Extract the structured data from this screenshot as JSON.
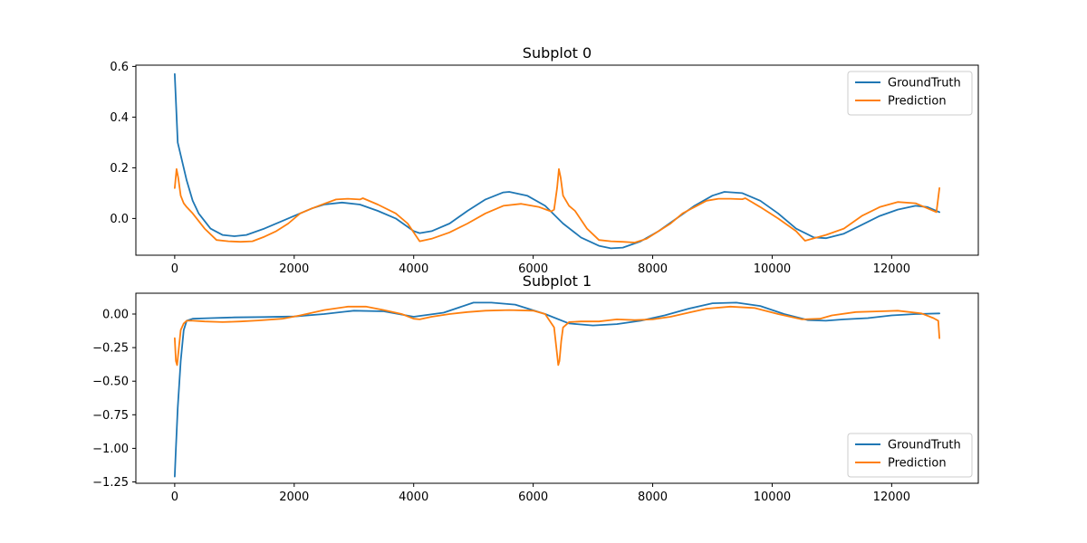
{
  "chart_data": [
    {
      "type": "line",
      "title": "Subplot 0",
      "xlabel": "",
      "ylabel": "",
      "xlim": [
        -650,
        13450
      ],
      "ylim": [
        -0.145,
        0.605
      ],
      "xticks": [
        0,
        2000,
        4000,
        6000,
        8000,
        10000,
        12000
      ],
      "xtick_labels": [
        "0",
        "2000",
        "4000",
        "6000",
        "8000",
        "10000",
        "12000"
      ],
      "yticks": [
        0.0,
        0.2,
        0.4,
        0.6
      ],
      "ytick_labels": [
        "0.0",
        "0.2",
        "0.4",
        "0.6"
      ],
      "grid": false,
      "legend_location": "upper right",
      "series": [
        {
          "name": "GroundTruth",
          "color": "#1f77b4",
          "x": [
            0,
            50,
            100,
            200,
            300,
            400,
            600,
            800,
            1000,
            1200,
            1500,
            1800,
            2000,
            2300,
            2500,
            2800,
            3100,
            3400,
            3700,
            4000,
            4100,
            4300,
            4600,
            4900,
            5200,
            5500,
            5600,
            5900,
            6200,
            6500,
            6800,
            7100,
            7300,
            7500,
            7800,
            8100,
            8400,
            8700,
            9000,
            9200,
            9500,
            9800,
            10100,
            10400,
            10700,
            10900,
            11200,
            11500,
            11800,
            12100,
            12400,
            12600,
            12800
          ],
          "y": [
            0.57,
            0.3,
            0.25,
            0.15,
            0.07,
            0.02,
            -0.04,
            -0.065,
            -0.07,
            -0.065,
            -0.04,
            -0.01,
            0.01,
            0.04,
            0.055,
            0.063,
            0.055,
            0.03,
            0.0,
            -0.05,
            -0.058,
            -0.05,
            -0.02,
            0.03,
            0.075,
            0.103,
            0.105,
            0.09,
            0.05,
            -0.02,
            -0.075,
            -0.108,
            -0.118,
            -0.115,
            -0.09,
            -0.05,
            0.0,
            0.05,
            0.09,
            0.105,
            0.1,
            0.07,
            0.02,
            -0.04,
            -0.075,
            -0.078,
            -0.06,
            -0.025,
            0.01,
            0.035,
            0.05,
            0.045,
            0.025
          ]
        },
        {
          "name": "Prediction",
          "color": "#ff7f0e",
          "x": [
            0,
            30,
            60,
            100,
            150,
            200,
            300,
            500,
            700,
            900,
            1100,
            1300,
            1500,
            1700,
            1900,
            2100,
            2300,
            2500,
            2700,
            2900,
            3100,
            3150,
            3400,
            3700,
            3900,
            4100,
            4300,
            4600,
            4900,
            5200,
            5500,
            5800,
            6100,
            6300,
            6350,
            6400,
            6430,
            6460,
            6500,
            6600,
            6700,
            6900,
            7100,
            7300,
            7500,
            7700,
            7900,
            8100,
            8300,
            8500,
            8700,
            8900,
            9100,
            9300,
            9500,
            9550,
            9800,
            10100,
            10400,
            10550,
            10700,
            10900,
            11200,
            11500,
            11800,
            12100,
            12400,
            12600,
            12750,
            12800
          ],
          "y": [
            0.12,
            0.195,
            0.16,
            0.09,
            0.06,
            0.045,
            0.02,
            -0.04,
            -0.085,
            -0.09,
            -0.092,
            -0.09,
            -0.072,
            -0.05,
            -0.02,
            0.02,
            0.04,
            0.058,
            0.075,
            0.078,
            0.075,
            0.08,
            0.055,
            0.02,
            -0.02,
            -0.09,
            -0.08,
            -0.055,
            -0.02,
            0.02,
            0.05,
            0.058,
            0.045,
            0.028,
            0.035,
            0.12,
            0.195,
            0.16,
            0.09,
            0.05,
            0.03,
            -0.04,
            -0.085,
            -0.09,
            -0.092,
            -0.095,
            -0.08,
            -0.05,
            -0.02,
            0.02,
            0.045,
            0.07,
            0.078,
            0.078,
            0.076,
            0.08,
            0.045,
            0.0,
            -0.05,
            -0.088,
            -0.078,
            -0.065,
            -0.04,
            0.01,
            0.045,
            0.065,
            0.06,
            0.04,
            0.025,
            0.12
          ]
        }
      ]
    },
    {
      "type": "line",
      "title": "Subplot 1",
      "xlabel": "",
      "ylabel": "",
      "xlim": [
        -650,
        13450
      ],
      "ylim": [
        -1.26,
        0.155
      ],
      "xticks": [
        0,
        2000,
        4000,
        6000,
        8000,
        10000,
        12000
      ],
      "xtick_labels": [
        "0",
        "2000",
        "4000",
        "6000",
        "8000",
        "10000",
        "12000"
      ],
      "yticks": [
        -1.25,
        -1.0,
        -0.75,
        -0.5,
        -0.25,
        0.0
      ],
      "ytick_labels": [
        "−1.25",
        "−1.00",
        "−0.75",
        "−0.50",
        "−0.25",
        "0.00"
      ],
      "grid": false,
      "legend_location": "lower right",
      "series": [
        {
          "name": "GroundTruth",
          "color": "#1f77b4",
          "x": [
            0,
            20,
            50,
            100,
            150,
            200,
            300,
            600,
            1000,
            1500,
            2000,
            2500,
            3000,
            3500,
            4000,
            4500,
            5000,
            5300,
            5700,
            6200,
            6600,
            7000,
            7400,
            7800,
            8200,
            8600,
            9000,
            9400,
            9800,
            10200,
            10600,
            10900,
            11200,
            11600,
            12000,
            12400,
            12800
          ],
          "y": [
            -1.21,
            -1.0,
            -0.7,
            -0.35,
            -0.12,
            -0.05,
            -0.035,
            -0.03,
            -0.025,
            -0.022,
            -0.018,
            0.0,
            0.025,
            0.02,
            -0.02,
            0.01,
            0.085,
            0.085,
            0.07,
            0.0,
            -0.07,
            -0.085,
            -0.075,
            -0.05,
            -0.01,
            0.04,
            0.08,
            0.085,
            0.06,
            0.0,
            -0.045,
            -0.05,
            -0.04,
            -0.03,
            -0.01,
            0.0,
            0.005
          ]
        },
        {
          "name": "Prediction",
          "color": "#ff7f0e",
          "x": [
            0,
            20,
            40,
            70,
            100,
            150,
            200,
            300,
            500,
            800,
            1100,
            1400,
            1800,
            2100,
            2500,
            2900,
            3200,
            3500,
            3800,
            4000,
            4100,
            4300,
            4600,
            4900,
            5200,
            5600,
            6000,
            6200,
            6350,
            6400,
            6420,
            6440,
            6470,
            6500,
            6600,
            6800,
            7100,
            7400,
            7700,
            8000,
            8300,
            8600,
            8900,
            9300,
            9700,
            10100,
            10500,
            10800,
            11000,
            11400,
            11800,
            12100,
            12500,
            12700,
            12780,
            12800
          ],
          "y": [
            -0.18,
            -0.35,
            -0.38,
            -0.25,
            -0.12,
            -0.07,
            -0.05,
            -0.05,
            -0.055,
            -0.06,
            -0.055,
            -0.048,
            -0.035,
            -0.01,
            0.03,
            0.055,
            0.055,
            0.03,
            0.0,
            -0.035,
            -0.04,
            -0.02,
            0.0,
            0.015,
            0.025,
            0.03,
            0.025,
            0.0,
            -0.1,
            -0.3,
            -0.38,
            -0.35,
            -0.2,
            -0.1,
            -0.06,
            -0.055,
            -0.055,
            -0.04,
            -0.045,
            -0.04,
            -0.02,
            0.01,
            0.04,
            0.055,
            0.045,
            0.0,
            -0.04,
            -0.035,
            -0.01,
            0.015,
            0.02,
            0.025,
            0.005,
            -0.03,
            -0.05,
            -0.18
          ]
        }
      ]
    }
  ]
}
